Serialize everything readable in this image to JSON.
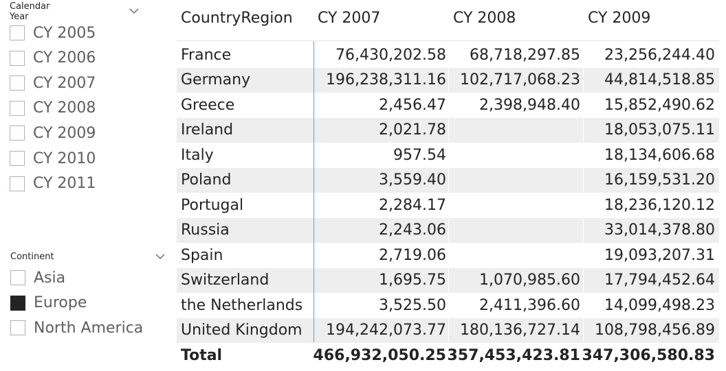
{
  "slicers": {
    "calendar_year": {
      "title": "Calendar Year",
      "icon": "chevron-down-icon",
      "items": [
        {
          "label": "CY 2005",
          "checked": false
        },
        {
          "label": "CY 2006",
          "checked": false
        },
        {
          "label": "CY 2007",
          "checked": false
        },
        {
          "label": "CY 2008",
          "checked": false
        },
        {
          "label": "CY 2009",
          "checked": false
        },
        {
          "label": "CY 2010",
          "checked": false
        },
        {
          "label": "CY 2011",
          "checked": false
        }
      ]
    },
    "continent": {
      "title": "Continent",
      "icon": "chevron-down-icon",
      "items": [
        {
          "label": "Asia",
          "checked": false
        },
        {
          "label": "Europe",
          "checked": true
        },
        {
          "label": "North America",
          "checked": false
        }
      ]
    }
  },
  "matrix": {
    "headers": [
      "CountryRegion",
      "CY 2007",
      "CY 2008",
      "CY 2009"
    ],
    "rows": [
      {
        "country": "France",
        "cy2007": "76,430,202.58",
        "cy2008": "68,718,297.85",
        "cy2009": "23,256,244.40"
      },
      {
        "country": "Germany",
        "cy2007": "196,238,311.16",
        "cy2008": "102,717,068.23",
        "cy2009": "44,814,518.85"
      },
      {
        "country": "Greece",
        "cy2007": "2,456.47",
        "cy2008": "2,398,948.40",
        "cy2009": "15,852,490.62"
      },
      {
        "country": "Ireland",
        "cy2007": "2,021.78",
        "cy2008": "",
        "cy2009": "18,053,075.11"
      },
      {
        "country": "Italy",
        "cy2007": "957.54",
        "cy2008": "",
        "cy2009": "18,134,606.68"
      },
      {
        "country": "Poland",
        "cy2007": "3,559.40",
        "cy2008": "",
        "cy2009": "16,159,531.20"
      },
      {
        "country": "Portugal",
        "cy2007": "2,284.17",
        "cy2008": "",
        "cy2009": "18,236,120.12"
      },
      {
        "country": "Russia",
        "cy2007": "2,243.06",
        "cy2008": "",
        "cy2009": "33,014,378.80"
      },
      {
        "country": "Spain",
        "cy2007": "2,719.06",
        "cy2008": "",
        "cy2009": "19,093,207.31"
      },
      {
        "country": "Switzerland",
        "cy2007": "1,695.75",
        "cy2008": "1,070,985.60",
        "cy2009": "17,794,452.64"
      },
      {
        "country": "the Netherlands",
        "cy2007": "3,525.50",
        "cy2008": "2,411,396.60",
        "cy2009": "14,099,498.23"
      },
      {
        "country": "United Kingdom",
        "cy2007": "194,242,073.77",
        "cy2008": "180,136,727.14",
        "cy2009": "108,798,456.89"
      }
    ],
    "total": {
      "label": "Total",
      "cy2007": "466,932,050.25",
      "cy2008": "357,453,423.81",
      "cy2009": "347,306,580.83"
    }
  },
  "colors": {
    "checked_box": "#252423",
    "row_band": "#eeeeee",
    "selection_line": "#5ca3d9"
  }
}
